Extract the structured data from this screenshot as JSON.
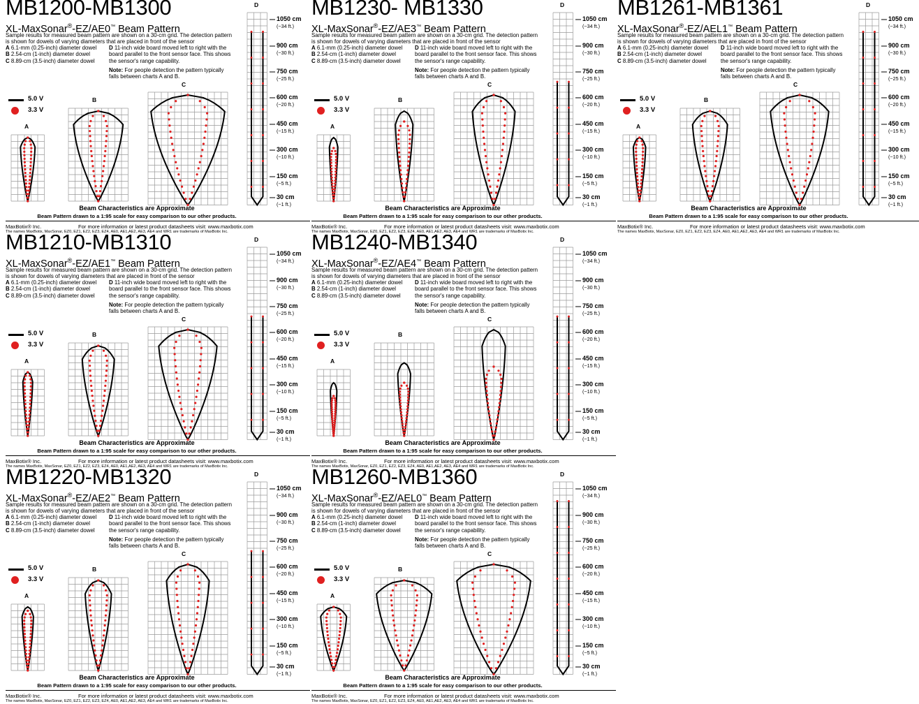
{
  "common": {
    "subtitle_prefix": "XL-MaxSonar",
    "desc": "Sample results for measured beam pattern are shown on a 30-cm grid. The detection pattern is shown for dowels of varying diameters that are placed in front of the sensor",
    "itemA_letter": "A",
    "itemA": "6.1-mm (0.25-inch) diameter dowel",
    "itemB_letter": "B",
    "itemB": "2.54-cm (1-inch) diameter dowel",
    "itemC_letter": "C",
    "itemC": "8.89-cm (3.5-inch) diameter dowel",
    "itemD_letter": "D",
    "itemD": "11-inch wide board moved left to right with the board parallel to the front sensor face. This shows the sensor's range capability.",
    "note_label": "Note:",
    "note": "For people detection the pattern typically falls between charts A and B.",
    "legend_5v": "5.0 V",
    "legend_3v": "3.3 V",
    "label_a": "A",
    "label_b": "B",
    "label_c": "C",
    "label_d": "D",
    "beam_char": "Beam Characteristics are Approximate",
    "scale": "Beam Pattern drawn to a 1:95 scale for easy comparison to our other products.",
    "footer_company": "MaxBotix® Inc.",
    "footer_info": "For more information or latest product datasheets visit:  www.maxbotix.com",
    "footer_tm": "The names MaxBotix, MaxSonar, EZ0, EZ1, EZ2, EZ3, EZ4, AE0, AE1,AE2, AE3, AE4 and WR1 are trademarks of MaxBotix Inc.",
    "distances": [
      {
        "cm": "1050 cm",
        "ft": "(~34 ft.)"
      },
      {
        "cm": "900 cm",
        "ft": "(~30 ft.)"
      },
      {
        "cm": "750 cm",
        "ft": "(~25 ft.)"
      },
      {
        "cm": "600 cm",
        "ft": "(~20 ft.)"
      },
      {
        "cm": "450 cm",
        "ft": "(~15 ft.)"
      },
      {
        "cm": "300 cm",
        "ft": "(~10 ft.)"
      },
      {
        "cm": "150 cm",
        "ft": "(~5 ft.)"
      },
      {
        "cm": "30 cm",
        "ft": "(~1 ft.)"
      }
    ],
    "colors": {
      "five_volt": "#000000",
      "three_volt": "#e02020",
      "grid": "#9a9a9a"
    }
  },
  "panels": [
    {
      "title": "MB1200-MB1300",
      "model": "-EZ/AE0",
      "beams": {
        "a": {
          "w5": 0.45,
          "r5": 30,
          "w3": 0.22,
          "r3": 15
        },
        "b": {
          "w5": 0.85,
          "r5": 40,
          "w3": 0.3,
          "r3": 27
        },
        "c": {
          "w5": 0.95,
          "r5": 52,
          "w3": 0.5,
          "r3": 40
        },
        "d": {
          "r5": 90,
          "r3": 90
        }
      }
    },
    {
      "title": "MB1230- MB1330",
      "model": "-EZ/AE3",
      "beams": {
        "a": {
          "w5": 0.26,
          "r5": 11,
          "w3": 0.16,
          "r3": 8
        },
        "b": {
          "w5": 0.3,
          "r5": 18,
          "w3": 0.2,
          "r3": 12
        },
        "c": {
          "w5": 0.55,
          "r5": 34,
          "w3": 0.3,
          "r3": 19
        },
        "d": {
          "r5": 64,
          "r3": 64
        }
      }
    },
    {
      "title": "MB1261-MB1361",
      "model": "-EZ/AEL1",
      "beams": {
        "a": {
          "w5": 0.38,
          "r5": 17,
          "w3": 0.22,
          "r3": 12
        },
        "b": {
          "w5": 0.6,
          "r5": 28,
          "w3": 0.3,
          "r3": 17
        },
        "c": {
          "w5": 0.75,
          "r5": 46,
          "w3": 0.4,
          "r3": 28
        },
        "d": {
          "r5": 90,
          "r3": 90
        }
      }
    },
    {
      "title": "MB1210-MB1310",
      "model": "-EZ/AE1",
      "beams": {
        "a": {
          "w5": 0.3,
          "r5": 15,
          "w3": 0.2,
          "r3": 11
        },
        "b": {
          "w5": 0.55,
          "r5": 28,
          "w3": 0.3,
          "r3": 17
        },
        "c": {
          "w5": 0.75,
          "r5": 46,
          "w3": 0.35,
          "r3": 27
        },
        "d": {
          "r5": 64,
          "r3": 64
        }
      }
    },
    {
      "title": "MB1240-MB1340",
      "model": "-EZ/AE4",
      "beams": {
        "a": {
          "w5": 0.2,
          "r5": 8,
          "w3": 0.12,
          "r3": 6
        },
        "b": {
          "w5": 0.22,
          "r5": 11,
          "w3": 0.15,
          "r3": 8
        },
        "c": {
          "w5": 0.3,
          "r5": 20,
          "w3": 0.2,
          "r3": 11
        },
        "d": {
          "r5": 64,
          "r3": 64
        }
      }
    },
    {
      "title": "MB1220-MB1320",
      "model": "-EZ/AE2",
      "beams": {
        "a": {
          "w5": 0.35,
          "r5": 12,
          "w3": 0.22,
          "r3": 9
        },
        "b": {
          "w5": 0.45,
          "r5": 24,
          "w3": 0.3,
          "r3": 18
        },
        "c": {
          "w5": 0.55,
          "r5": 40,
          "w3": 0.3,
          "r3": 20
        },
        "d": {
          "r5": 64,
          "r3": 64
        }
      }
    },
    {
      "title": "MB1260-MB1360",
      "model": "-EZ/AEL0",
      "beams": {
        "a": {
          "w5": 0.8,
          "r5": 30,
          "w3": 0.45,
          "r3": 22
        },
        "b": {
          "w5": 0.95,
          "r5": 40,
          "w3": 0.45,
          "r3": 28
        },
        "c": {
          "w5": 0.95,
          "r5": 52,
          "w3": 0.55,
          "r3": 40
        },
        "d": {
          "r5": 90,
          "r3": 90
        }
      }
    }
  ]
}
